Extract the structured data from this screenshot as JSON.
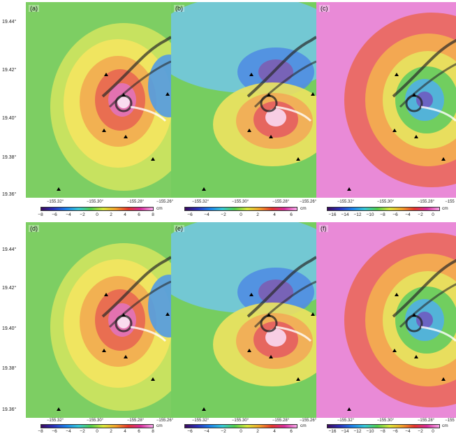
{
  "y_axis": [
    "19.44°",
    "19.42°",
    "19.40°",
    "19.38°",
    "19.36°"
  ],
  "x_axis": [
    "−155.32°",
    "−155.30°",
    "−155.28°",
    "−155.26°"
  ],
  "x_axis_cut": [
    "−155.32°",
    "−155.30°",
    "−155.28°",
    "−155"
  ],
  "unit": "cm",
  "colorbars": {
    "a": [
      "−8",
      "−6",
      "−4",
      "−2",
      "0",
      "2",
      "4",
      "6",
      "8"
    ],
    "b": [
      "−6",
      "−4",
      "−2",
      "0",
      "2",
      "4",
      "6"
    ],
    "c": [
      "−16",
      "−14",
      "−12",
      "−10",
      "−8",
      "−6",
      "−4",
      "−2",
      "0"
    ]
  },
  "panels": [
    {
      "id": "a",
      "label": "(a)",
      "scheme": "a"
    },
    {
      "id": "b",
      "label": "(b)",
      "scheme": "b"
    },
    {
      "id": "c",
      "label": "(c)",
      "scheme": "c"
    },
    {
      "id": "d",
      "label": "(d)",
      "scheme": "a"
    },
    {
      "id": "e",
      "label": "(e)",
      "scheme": "b"
    },
    {
      "id": "f",
      "label": "(f)",
      "scheme": "c"
    }
  ],
  "stations": 7
}
